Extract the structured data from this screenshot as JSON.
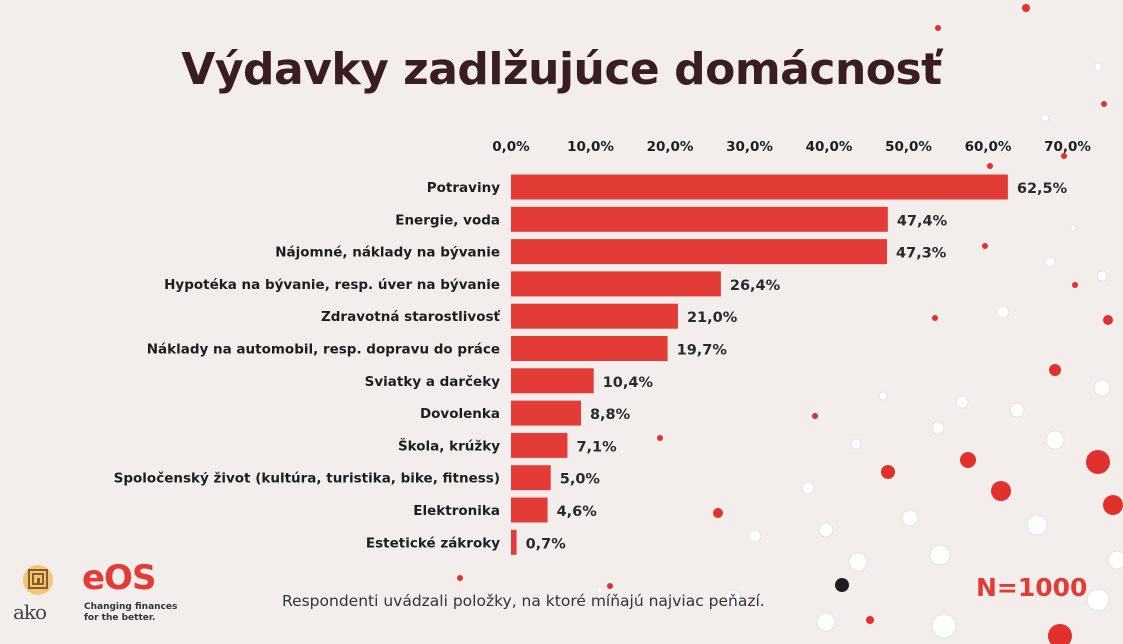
{
  "title": "Výdavky zadlžujúce domácnosť",
  "note": "Respondenti uvádzali položky, na ktoré míňajú najviac peňazí.",
  "sample": "N=1000",
  "brand": {
    "ako": "ako",
    "eos": "eOS",
    "eos_tagline_1": "Changing finances",
    "eos_tagline_2": "for the better.",
    "accent": "#e33b36"
  },
  "chart_data": {
    "type": "bar",
    "orientation": "horizontal",
    "title": "Výdavky zadlžujúce domácnosť",
    "xlim": [
      0,
      70
    ],
    "ticks": [
      "0,0%",
      "10,0%",
      "20,0%",
      "30,0%",
      "40,0%",
      "50,0%",
      "60,0%",
      "70,0%"
    ],
    "tick_position": "top",
    "grid": false,
    "bar_color": "#e33b36",
    "categories": [
      "Potraviny",
      "Energie, voda",
      "Nájomné, náklady na bývanie",
      "Hypotéka na bývanie, resp. úver na bývanie",
      "Zdravotná starostlivosť",
      "Náklady na automobil, resp. dopravu do práce",
      "Sviatky a darčeky",
      "Dovolenka",
      "Škola, krúžky",
      "Spoločenský život (kultúra, turistika, bike, fitness)",
      "Elektronika",
      "Estetické zákroky"
    ],
    "values": [
      62.5,
      47.4,
      47.3,
      26.4,
      21.0,
      19.7,
      10.4,
      8.8,
      7.1,
      5.0,
      4.6,
      0.7
    ],
    "labels": [
      "62,5%",
      "47,4%",
      "47,3%",
      "26,4%",
      "21,0%",
      "19,7%",
      "10,4%",
      "8,8%",
      "7,1%",
      "5,0%",
      "4,6%",
      "0,7%"
    ]
  }
}
